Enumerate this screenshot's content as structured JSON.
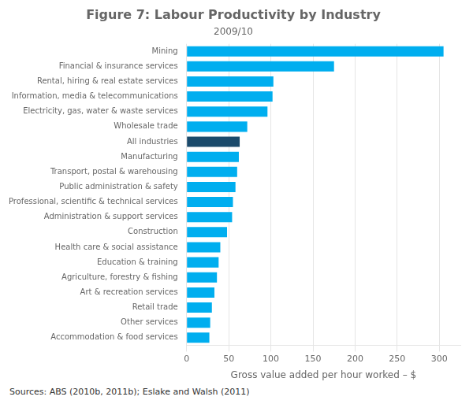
{
  "chart_data": {
    "type": "bar",
    "orientation": "horizontal",
    "title": "Figure 7: Labour Productivity by Industry",
    "subtitle": "2009/10",
    "xlabel": "Gross value added per hour worked – $",
    "source": "Sources:  ABS (2010b, 2011b); Eslake and Walsh (2011)",
    "categories": [
      "Mining",
      "Financial & insurance services",
      "Rental, hiring & real estate services",
      "Information, media & telecommunications",
      "Electricity, gas, water & waste services",
      "Wholesale trade",
      "All industries",
      "Manufacturing",
      "Transport, postal & warehousing",
      "Public administration & safety",
      "Professional, scientific & technical services",
      "Administration & support services",
      "Construction",
      "Health care & social assistance",
      "Education & training",
      "Agriculture, forestry & fishing",
      "Art & recreation services",
      "Retail trade",
      "Other services",
      "Accommodation & food services"
    ],
    "values": [
      305,
      175,
      103,
      102,
      96,
      72,
      63,
      62,
      60,
      58,
      55,
      54,
      48,
      40,
      38,
      36,
      33,
      30,
      28,
      27
    ],
    "colors": [
      "#00AEEF",
      "#00AEEF",
      "#00AEEF",
      "#00AEEF",
      "#00AEEF",
      "#00AEEF",
      "#1B4A6B",
      "#00AEEF",
      "#00AEEF",
      "#00AEEF",
      "#00AEEF",
      "#00AEEF",
      "#00AEEF",
      "#00AEEF",
      "#00AEEF",
      "#00AEEF",
      "#00AEEF",
      "#00AEEF",
      "#00AEEF",
      "#00AEEF"
    ],
    "xlim": [
      0,
      325
    ],
    "xticks": [
      0,
      50,
      100,
      150,
      200,
      250,
      300
    ],
    "grid": true
  }
}
